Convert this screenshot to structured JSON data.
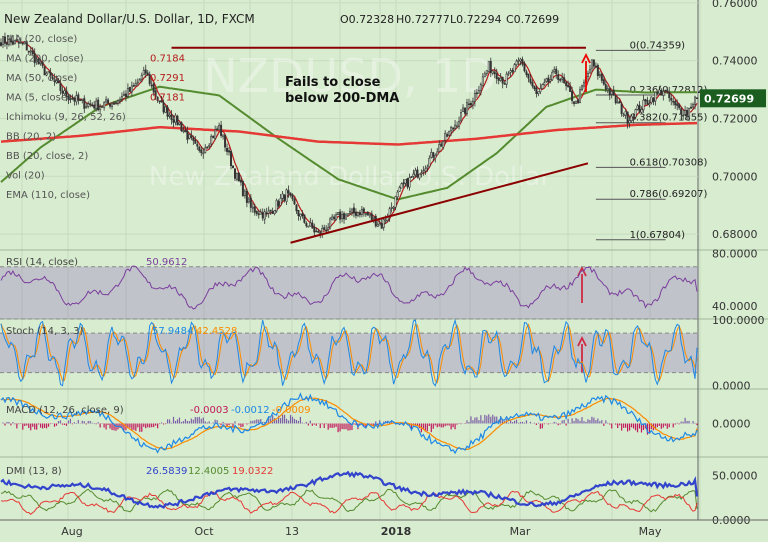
{
  "header": {
    "title": "New Zealand Dollar/U.S. Dollar, 1D, FXCM",
    "ohlc": [
      "O0.72328",
      "H0.72777",
      "L0.72294",
      "C0.72699"
    ]
  },
  "indicator_labels": [
    {
      "text": "MA (20, close)",
      "value": ""
    },
    {
      "text": "MA (200, close)",
      "value": "0.7184"
    },
    {
      "text": "MA (50, close)",
      "value": "0.7291"
    },
    {
      "text": "MA (5, close)",
      "value": "0.7181"
    },
    {
      "text": "Ichimoku (9, 26, 52, 26)",
      "value": ""
    },
    {
      "text": "BB (20, 2)",
      "value": ""
    },
    {
      "text": "BB (20, close, 2)",
      "value": ""
    },
    {
      "text": "Vol (20)",
      "value": ""
    },
    {
      "text": "EMA (110, close)",
      "value": ""
    }
  ],
  "watermark": [
    "NZDUSD, 1D",
    "New Zealand Dollar/U.S. Dollar"
  ],
  "annotation": "Fails to close\nbelow 200-DMA",
  "current_price": "0.72699",
  "fib_levels": [
    {
      "label": "0(0.74359)",
      "value": 0.74359
    },
    {
      "label": "0.236(0.72812)",
      "value": 0.72812
    },
    {
      "label": "0.382(0.71855)",
      "value": 0.71855
    },
    {
      "label": "0.618(0.70308)",
      "value": 0.70308
    },
    {
      "label": "0.786(0.69207)",
      "value": 0.69207
    },
    {
      "label": "1(0.67804)",
      "value": 0.67804
    }
  ],
  "rsi": {
    "title": "RSI (14, close)",
    "value": "50.9612"
  },
  "stoch": {
    "title": "Stoch (14, 3, 3)",
    "k": "57.9484",
    "d": "42.4528"
  },
  "macd": {
    "title": "MACD (12, 26, close, 9)",
    "hist": "-0.0003",
    "macd": "-0.0012",
    "signal": "-0.0009"
  },
  "dmi": {
    "title": "DMI (13, 8)",
    "adx": "26.5839",
    "pdi": "12.4005",
    "mdi": "19.0322"
  },
  "colors": {
    "background": "#d8ecd0",
    "candle_up": "#26a69a",
    "candle_down": "#ef5350",
    "ma200": "#e53935",
    "ma50": "#558b2f",
    "ma5": "#b71c1c",
    "trendline": "#8b0000",
    "rsi": "#7b3f9e",
    "stoch_k": "#1e88e5",
    "stoch_d": "#fb8c00",
    "macd": "#1e88e5",
    "signal": "#fb8c00",
    "adx": "#3344cc",
    "pdi": "#558b2f",
    "mdi": "#e53935",
    "price_tag": "#1b5e20"
  },
  "chart_data": [
    {
      "type": "candlestick",
      "title": "New Zealand Dollar/U.S. Dollar, 1D, FXCM",
      "x_ticks": [
        "Aug",
        "Oct",
        "13",
        "2018",
        "Mar",
        "May"
      ],
      "y_ticks": [
        "0.76000",
        "0.74000",
        "0.72000",
        "0.70000",
        "0.68000"
      ],
      "ylim": [
        0.6745,
        0.761
      ],
      "anchors": [
        [
          0,
          0.747
        ],
        [
          12,
          0.7455
        ],
        [
          20,
          0.738
        ],
        [
          32,
          0.7285
        ],
        [
          42,
          0.725
        ],
        [
          50,
          0.7245
        ],
        [
          58,
          0.726
        ],
        [
          66,
          0.73
        ],
        [
          73,
          0.736
        ],
        [
          80,
          0.725
        ],
        [
          90,
          0.718
        ],
        [
          100,
          0.708
        ],
        [
          110,
          0.717
        ],
        [
          118,
          0.701
        ],
        [
          126,
          0.689
        ],
        [
          134,
          0.6865
        ],
        [
          144,
          0.694
        ],
        [
          152,
          0.685
        ],
        [
          160,
          0.68
        ],
        [
          170,
          0.686
        ],
        [
          182,
          0.688
        ],
        [
          192,
          0.683
        ],
        [
          202,
          0.696
        ],
        [
          214,
          0.704
        ],
        [
          226,
          0.715
        ],
        [
          238,
          0.727
        ],
        [
          246,
          0.738
        ],
        [
          254,
          0.733
        ],
        [
          262,
          0.74
        ],
        [
          270,
          0.728
        ],
        [
          280,
          0.736
        ],
        [
          290,
          0.725
        ],
        [
          298,
          0.739
        ],
        [
          306,
          0.73
        ],
        [
          316,
          0.72
        ],
        [
          326,
          0.726
        ],
        [
          334,
          0.73
        ],
        [
          340,
          0.724
        ],
        [
          346,
          0.722
        ],
        [
          350,
          0.727
        ]
      ],
      "ma200": [
        [
          0,
          0.712
        ],
        [
          40,
          0.714
        ],
        [
          80,
          0.717
        ],
        [
          120,
          0.7155
        ],
        [
          160,
          0.712
        ],
        [
          200,
          0.711
        ],
        [
          240,
          0.713
        ],
        [
          280,
          0.716
        ],
        [
          320,
          0.7178
        ],
        [
          350,
          0.7184
        ]
      ],
      "ma50": [
        [
          0,
          0.698
        ],
        [
          20,
          0.71
        ],
        [
          50,
          0.724
        ],
        [
          80,
          0.731
        ],
        [
          110,
          0.728
        ],
        [
          140,
          0.713
        ],
        [
          170,
          0.699
        ],
        [
          200,
          0.692
        ],
        [
          225,
          0.696
        ],
        [
          250,
          0.708
        ],
        [
          275,
          0.724
        ],
        [
          300,
          0.73
        ],
        [
          325,
          0.729
        ],
        [
          350,
          0.7291
        ]
      ],
      "ma5_smoothing": 5,
      "trendlines": [
        [
          [
            86,
            0.7445
          ],
          [
            295,
            0.7445
          ]
        ],
        [
          [
            146,
            0.677
          ],
          [
            296,
            0.7045
          ]
        ]
      ],
      "fib_right_edge": [
        300,
        318
      ]
    },
    {
      "type": "line",
      "title": "RSI (14, close)",
      "y_ticks": [
        "80.0000",
        "40.0000"
      ],
      "ylim": [
        30,
        82
      ],
      "levels": [
        70,
        30
      ],
      "last": 50.9612
    },
    {
      "type": "line",
      "title": "Stoch (14, 3, 3)",
      "y_ticks": [
        "100.0000",
        "0.0000"
      ],
      "ylim": [
        -5,
        100
      ],
      "levels": [
        80,
        20
      ],
      "series": [
        {
          "name": "%K",
          "last": 57.9484
        },
        {
          "name": "%D",
          "last": 42.4528
        }
      ]
    },
    {
      "type": "line",
      "title": "MACD (12, 26, close, 9)",
      "y_ticks": [
        "0.0000"
      ],
      "ylim": [
        -0.006,
        0.006
      ],
      "last": {
        "hist": -0.0003,
        "macd": -0.0012,
        "signal": -0.0009
      }
    },
    {
      "type": "line",
      "title": "DMI (13, 8)",
      "y_ticks": [
        "50.0000",
        "0.0000"
      ],
      "ylim": [
        0,
        70
      ],
      "last": {
        "adx": 26.5839,
        "pdi": 12.4005,
        "mdi": 19.0322
      }
    }
  ]
}
